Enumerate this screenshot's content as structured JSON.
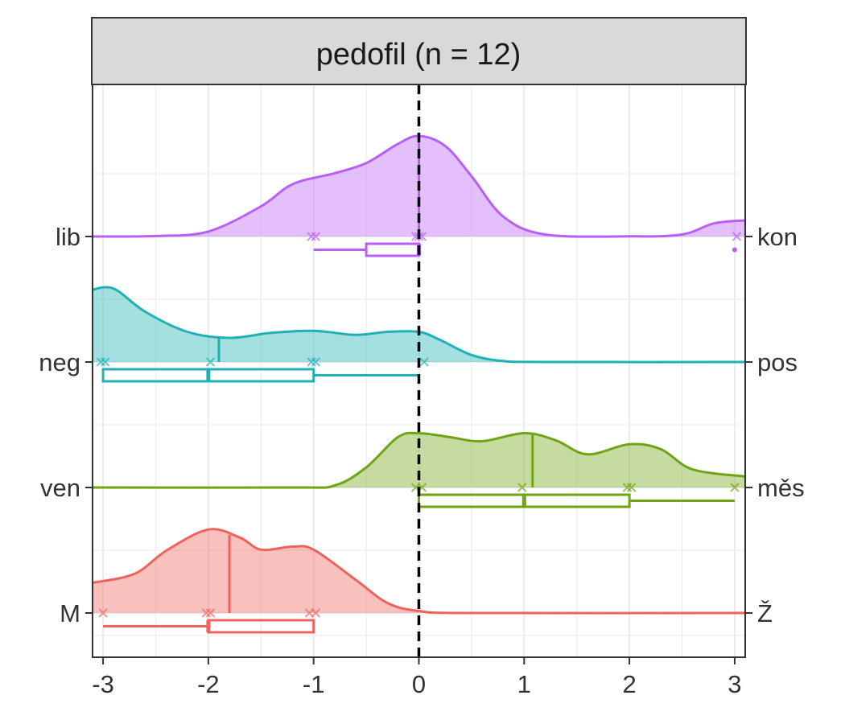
{
  "chart_data": {
    "type": "ridgeline-density-boxplot",
    "panel_title": "pedofil (n = 12)",
    "xlim": [
      -3.1,
      3.1
    ],
    "x_ticks": [
      -3,
      -2,
      -1,
      0,
      1,
      2,
      3
    ],
    "x_tick_labels": [
      "-3",
      "-2",
      "-1",
      "0",
      "1",
      "2",
      "3"
    ],
    "reference_line_x": 0,
    "grid": true,
    "rows": [
      {
        "left_label": "lib",
        "right_label": "kon",
        "color": "#B95FF5",
        "density": [
          [
            -3.1,
            0
          ],
          [
            -2.5,
            0.005
          ],
          [
            -2,
            0.05
          ],
          [
            -1.5,
            0.3
          ],
          [
            -1.2,
            0.52
          ],
          [
            -0.8,
            0.63
          ],
          [
            -0.5,
            0.73
          ],
          [
            -0.2,
            0.92
          ],
          [
            0,
            1.0
          ],
          [
            0.25,
            0.9
          ],
          [
            0.5,
            0.6
          ],
          [
            0.8,
            0.2
          ],
          [
            1.2,
            0.02
          ],
          [
            2,
            0.002
          ],
          [
            2.5,
            0.02
          ],
          [
            2.8,
            0.13
          ],
          [
            3.1,
            0.16
          ]
        ],
        "mean": 0.0,
        "points": [
          -1.02,
          -0.98,
          -0.03,
          0.0,
          0.03,
          3.02
        ],
        "box": {
          "whisker_low": -1,
          "q1": -0.5,
          "median": 0,
          "q3": 0,
          "whisker_high": 0
        },
        "outliers": [
          3.0
        ]
      },
      {
        "left_label": "neg",
        "right_label": "pos",
        "color": "#1FB1B5",
        "density": [
          [
            -3.1,
            0.72
          ],
          [
            -2.9,
            0.73
          ],
          [
            -2.6,
            0.5
          ],
          [
            -2.2,
            0.3
          ],
          [
            -1.8,
            0.24
          ],
          [
            -1.4,
            0.29
          ],
          [
            -1.0,
            0.31
          ],
          [
            -0.6,
            0.27
          ],
          [
            -0.3,
            0.3
          ],
          [
            0,
            0.3
          ],
          [
            0.2,
            0.22
          ],
          [
            0.5,
            0.07
          ],
          [
            0.8,
            0.01
          ],
          [
            1.2,
            0
          ],
          [
            3.1,
            0
          ]
        ],
        "mean": -1.9,
        "points": [
          -3.02,
          -2.98,
          -1.98,
          -1.02,
          -0.98,
          0.05
        ],
        "box": {
          "whisker_low": -3,
          "q1": -3,
          "median": -2,
          "q3": -1,
          "whisker_high": 0
        },
        "outliers": []
      },
      {
        "left_label": "ven",
        "right_label": "měs",
        "color": "#6FA412",
        "density": [
          [
            -3.1,
            0
          ],
          [
            -1.2,
            0
          ],
          [
            -0.8,
            0.02
          ],
          [
            -0.5,
            0.2
          ],
          [
            -0.2,
            0.5
          ],
          [
            0,
            0.54
          ],
          [
            0.3,
            0.5
          ],
          [
            0.6,
            0.46
          ],
          [
            1.0,
            0.54
          ],
          [
            1.3,
            0.47
          ],
          [
            1.6,
            0.33
          ],
          [
            2.0,
            0.43
          ],
          [
            2.3,
            0.38
          ],
          [
            2.6,
            0.18
          ],
          [
            3.1,
            0.11
          ]
        ],
        "mean": 1.08,
        "points": [
          -0.03,
          0.03,
          0.98,
          1.98,
          2.02,
          3.0
        ],
        "box": {
          "whisker_low": 0,
          "q1": 0,
          "median": 1,
          "q3": 2,
          "whisker_high": 3
        },
        "outliers": []
      },
      {
        "left_label": "M",
        "right_label": "Ž",
        "color": "#F0635C",
        "density": [
          [
            -3.1,
            0.3
          ],
          [
            -2.7,
            0.39
          ],
          [
            -2.4,
            0.62
          ],
          [
            -2.0,
            0.83
          ],
          [
            -1.7,
            0.75
          ],
          [
            -1.5,
            0.63
          ],
          [
            -1.2,
            0.66
          ],
          [
            -1.0,
            0.63
          ],
          [
            -0.6,
            0.33
          ],
          [
            -0.3,
            0.1
          ],
          [
            0,
            0.02
          ],
          [
            0.5,
            0
          ],
          [
            3.1,
            0
          ]
        ],
        "mean": -1.8,
        "points": [
          -3.0,
          -2.02,
          -1.98,
          -1.04,
          -0.98
        ],
        "box": {
          "whisker_low": -3,
          "q1": -2,
          "median": -2,
          "q3": -1,
          "whisker_high": -1
        },
        "outliers": []
      }
    ]
  }
}
